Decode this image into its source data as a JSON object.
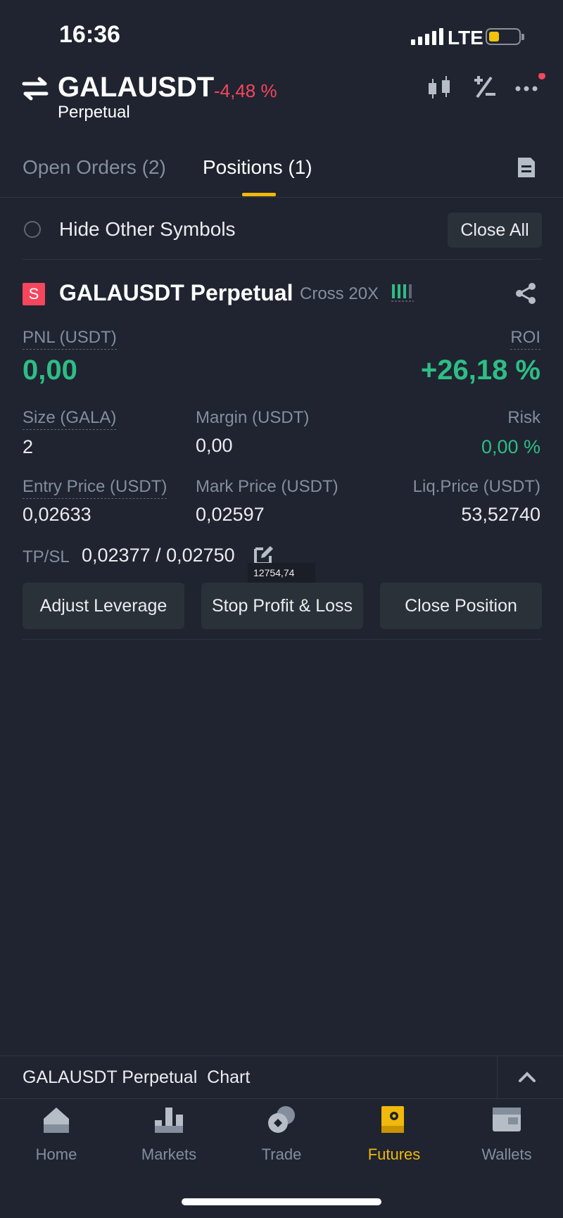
{
  "status_bar": {
    "time": "16:36",
    "network": "LTE"
  },
  "header": {
    "symbol": "GALAUSDT",
    "change": "-4,48 %",
    "contract_type": "Perpetual",
    "icons": [
      "swap-icon",
      "candlestick-icon",
      "plus-minus-icon",
      "more-icon"
    ]
  },
  "tabs": {
    "open_orders": "Open Orders (2)",
    "positions": "Positions (1)",
    "active": "positions"
  },
  "filter": {
    "hide_label": "Hide Other Symbols",
    "close_all": "Close All"
  },
  "position": {
    "badge": "S",
    "title": "GALAUSDT Perpetual",
    "margin_mode": "Cross 20X",
    "pnl_label": "PNL (USDT)",
    "pnl_value": "0,00",
    "roi_label": "ROI",
    "roi_value": "+26,18 %",
    "size_label": "Size (GALA)",
    "size_value": "2",
    "margin_label": "Margin (USDT)",
    "margin_value": "0,00",
    "risk_label": "Risk",
    "risk_value": "0,00 %",
    "entry_label": "Entry Price (USDT)",
    "entry_value": "0,02633",
    "mark_label": "Mark Price (USDT)",
    "mark_value": "0,02597",
    "liq_label": "Liq.Price (USDT)",
    "liq_value": "53,52740",
    "tpsl_label": "TP/SL",
    "tpsl_value": "0,02377 / 0,02750",
    "tooltip": "12754,74",
    "actions": {
      "adjust_leverage": "Adjust Leverage",
      "stop_profit_loss": "Stop Profit & Loss",
      "close_position": "Close Position"
    }
  },
  "chart_bar": {
    "label": "GALAUSDT Perpetual  Chart"
  },
  "bottom_nav": [
    {
      "label": "Home",
      "icon": "home-icon"
    },
    {
      "label": "Markets",
      "icon": "markets-icon"
    },
    {
      "label": "Trade",
      "icon": "trade-icon"
    },
    {
      "label": "Futures",
      "icon": "futures-icon",
      "active": true
    },
    {
      "label": "Wallets",
      "icon": "wallet-icon"
    }
  ],
  "colors": {
    "background": "#1f2430",
    "accent": "#f0b90b",
    "up": "#2ebd85",
    "down": "#f6465d"
  }
}
